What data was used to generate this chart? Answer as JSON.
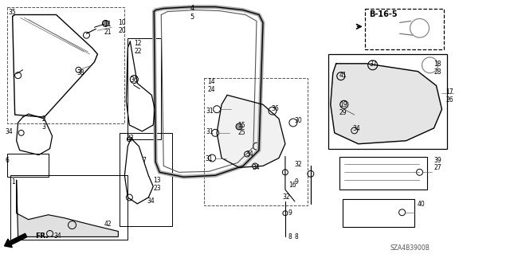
{
  "bg_color": "#ffffff",
  "line_color": "#000000",
  "gray": "#666666",
  "dark_gray": "#333333",
  "diagram_code": "SZA4B3900B"
}
